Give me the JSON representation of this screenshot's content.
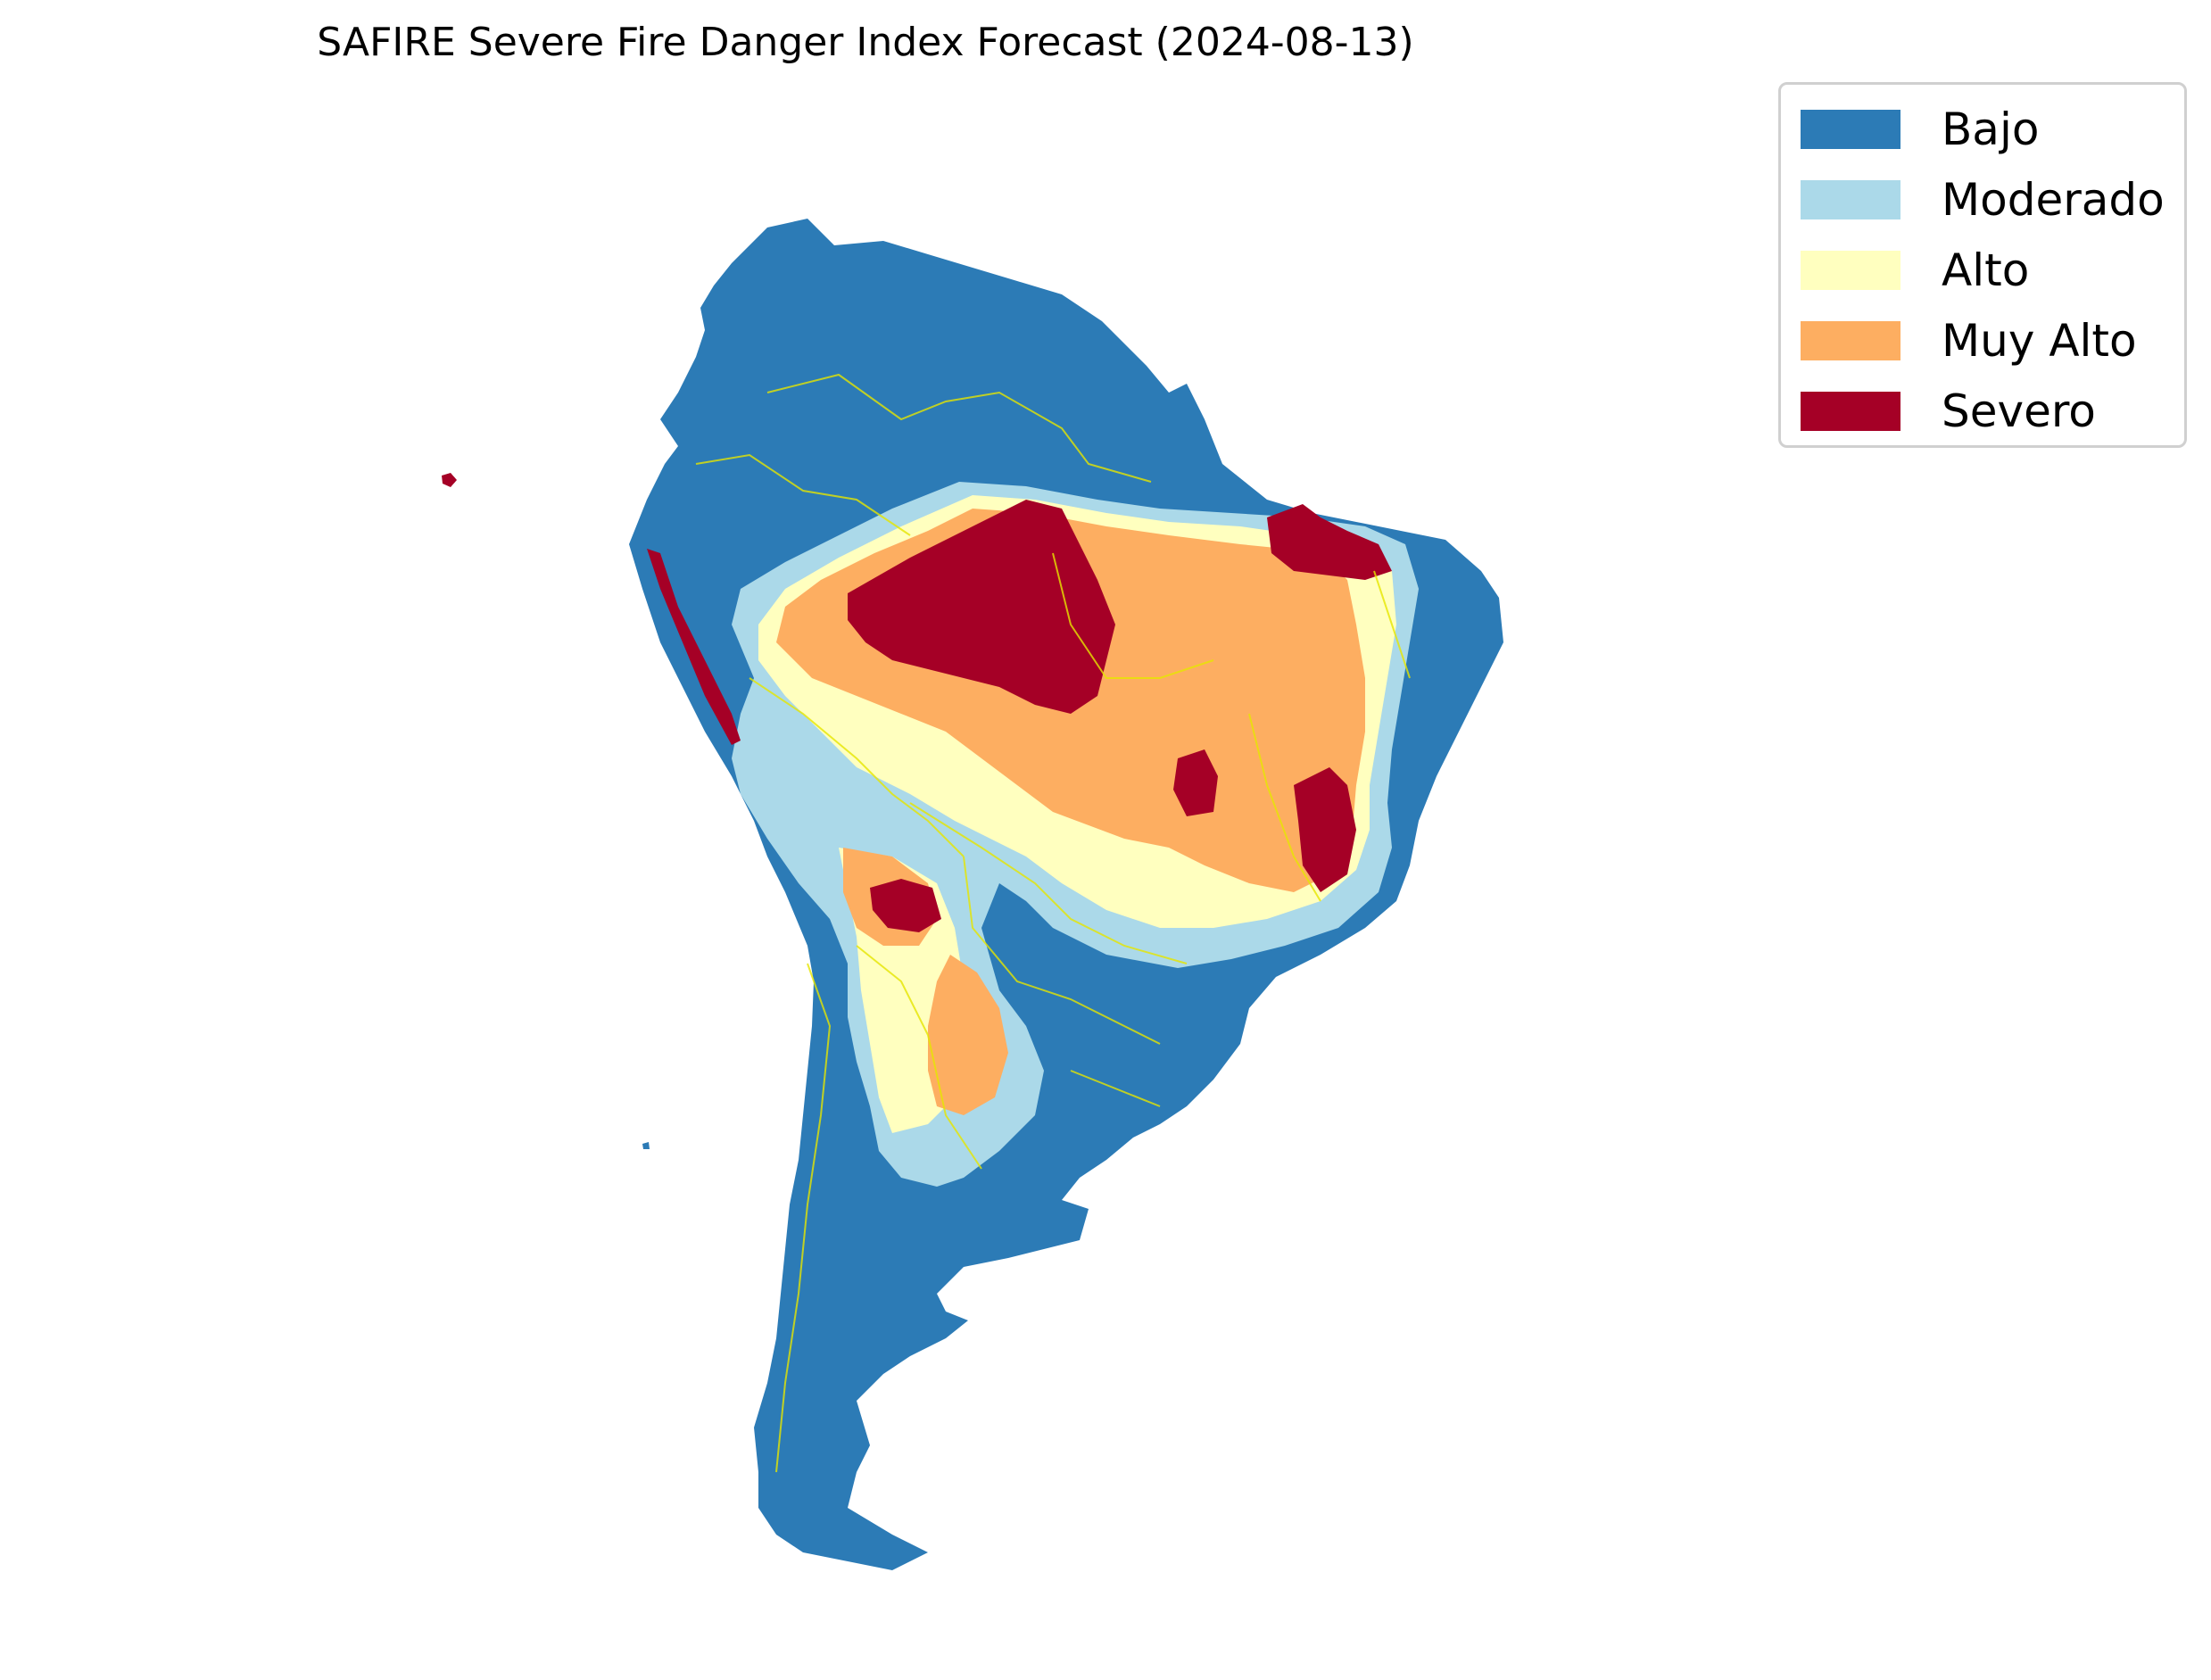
{
  "title": "SAFIRE Severe Fire Danger Index Forecast (2024-08-13)",
  "legend": {
    "items": [
      {
        "label": "Bajo",
        "color": "#2c7bb6"
      },
      {
        "label": "Moderado",
        "color": "#abd9e9"
      },
      {
        "label": "Alto",
        "color": "#ffffbf"
      },
      {
        "label": "Muy Alto",
        "color": "#fdae61"
      },
      {
        "label": "Severo",
        "color": "#a50026"
      }
    ]
  },
  "map": {
    "region": "South America",
    "border_color": "#e6e600"
  }
}
